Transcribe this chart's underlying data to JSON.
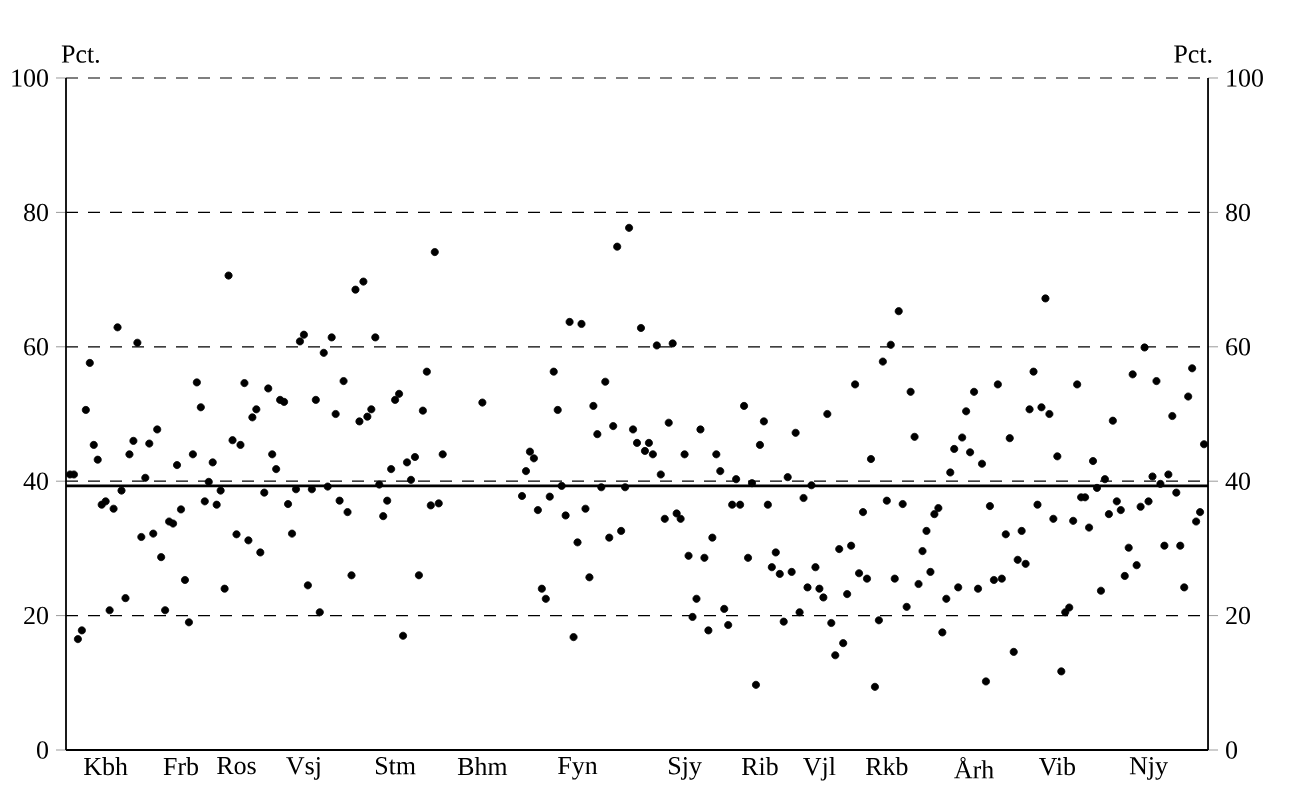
{
  "chart_data": {
    "type": "scatter",
    "ylabel": "Pct.",
    "y2label": "Pct.",
    "categories": [
      null,
      null,
      null,
      null,
      null,
      null,
      null,
      null,
      null,
      "Kbh",
      null,
      null,
      null,
      null,
      null,
      null,
      null,
      null,
      null,
      null,
      null,
      null,
      null,
      null,
      null,
      null,
      null,
      null,
      "Frb",
      null,
      null,
      null,
      null,
      null,
      null,
      null,
      null,
      null,
      null,
      null,
      null,
      null,
      "Ros",
      null,
      null,
      null,
      null,
      null,
      null,
      null,
      null,
      null,
      null,
      null,
      null,
      null,
      null,
      null,
      null,
      "Vsj",
      null,
      null,
      null,
      null,
      null,
      null,
      null,
      null,
      null,
      null,
      null,
      null,
      null,
      null,
      null,
      null,
      null,
      null,
      null,
      null,
      null,
      null,
      "Stm",
      null,
      null,
      null,
      null,
      null,
      null,
      null,
      null,
      null,
      null,
      null,
      null,
      null,
      null,
      null,
      null,
      null,
      null,
      null,
      null,
      null,
      "Bhm",
      null,
      null,
      null,
      null,
      null,
      null,
      null,
      null,
      null,
      null,
      null,
      null,
      null,
      null,
      null,
      null,
      null,
      null,
      null,
      null,
      null,
      null,
      null,
      "Fyn",
      null,
      null,
      null,
      null,
      null,
      null,
      null,
      null,
      null,
      null,
      null,
      null,
      null,
      null,
      null,
      null,
      null,
      null,
      null,
      null,
      null,
      null,
      null,
      null,
      null,
      null,
      "Sjy",
      null,
      null,
      null,
      null,
      null,
      null,
      null,
      null,
      null,
      null,
      null,
      null,
      null,
      null,
      null,
      null,
      null,
      null,
      "Rib",
      null,
      null,
      null,
      null,
      null,
      null,
      null,
      null,
      null,
      null,
      null,
      null,
      null,
      null,
      "Vjl",
      null,
      null,
      null,
      null,
      null,
      null,
      null,
      null,
      null,
      null,
      null,
      null,
      null,
      null,
      null,
      null,
      "Rkb",
      null,
      null,
      null,
      null,
      null,
      null,
      null,
      null,
      null,
      null,
      null,
      null,
      null,
      null,
      null,
      null,
      null,
      null,
      null,
      null,
      null,
      "Årh",
      null,
      null,
      null,
      null,
      null,
      null,
      null,
      null,
      null,
      null,
      null,
      null,
      null,
      null,
      null,
      null,
      null,
      null,
      null,
      null,
      "Vib",
      null,
      null,
      null,
      null,
      null,
      null,
      null,
      null,
      null,
      null,
      null,
      null,
      null,
      null,
      null,
      null,
      null,
      null,
      null,
      null,
      null,
      null,
      "Njy",
      null,
      null,
      null,
      null,
      null,
      null,
      null,
      null,
      null,
      null,
      null,
      null,
      null,
      null
    ],
    "ylim": [
      0,
      100
    ],
    "yticks": [
      0,
      20,
      40,
      60,
      80,
      100
    ],
    "y2lim": [
      0,
      100
    ],
    "y2ticks": [
      0,
      20,
      40,
      60,
      80,
      100
    ],
    "grid": "y",
    "marker": "circle",
    "color": "#000000",
    "ref_lines": [
      {
        "axis": "y",
        "value": 39.3
      }
    ],
    "values": [
      41.0,
      41.0,
      16.5,
      17.8,
      50.6,
      57.6,
      45.4,
      43.2,
      36.5,
      37.0,
      20.8,
      35.9,
      62.9,
      38.6,
      22.6,
      44.0,
      46.0,
      60.6,
      31.7,
      40.5,
      45.6,
      32.2,
      47.7,
      28.7,
      20.8,
      34.0,
      33.7,
      42.4,
      35.8,
      25.3,
      19.0,
      44.0,
      54.7,
      51.0,
      37.0,
      39.9,
      42.8,
      36.5,
      38.6,
      24.0,
      70.6,
      46.1,
      32.1,
      45.4,
      54.6,
      31.2,
      49.5,
      50.7,
      29.4,
      38.3,
      53.8,
      44.0,
      41.8,
      52.1,
      51.8,
      36.6,
      32.2,
      38.8,
      60.8,
      61.8,
      24.5,
      38.8,
      52.1,
      20.5,
      59.1,
      39.2,
      61.4,
      50.0,
      37.1,
      54.9,
      35.4,
      26.0,
      68.5,
      48.9,
      69.7,
      49.6,
      50.7,
      61.4,
      39.5,
      34.8,
      37.1,
      41.8,
      52.1,
      53.0,
      17.0,
      42.8,
      40.2,
      43.6,
      26.0,
      50.5,
      56.3,
      36.4,
      74.1,
      36.7,
      44.0,
      null,
      null,
      null,
      null,
      null,
      null,
      null,
      null,
      null,
      51.7,
      null,
      null,
      null,
      null,
      null,
      null,
      null,
      null,
      null,
      37.8,
      41.5,
      44.4,
      43.4,
      35.7,
      24.0,
      22.5,
      37.7,
      56.3,
      50.6,
      39.3,
      34.9,
      63.7,
      16.8,
      30.9,
      63.4,
      35.9,
      25.7,
      51.2,
      47.0,
      39.1,
      54.8,
      31.6,
      48.2,
      74.9,
      32.6,
      39.1,
      77.7,
      47.7,
      45.7,
      62.8,
      44.5,
      45.7,
      44.0,
      60.2,
      41.0,
      34.4,
      48.7,
      60.5,
      35.2,
      34.4,
      44.0,
      28.9,
      19.8,
      22.5,
      47.7,
      28.6,
      17.8,
      31.6,
      44.0,
      41.5,
      21.0,
      18.6,
      36.5,
      40.3,
      36.5,
      51.2,
      28.6,
      39.7,
      9.7,
      45.4,
      48.9,
      36.5,
      27.2,
      29.4,
      26.2,
      19.1,
      40.6,
      26.5,
      47.2,
      20.5,
      37.5,
      24.2,
      39.4,
      27.2,
      24.0,
      22.7,
      50.0,
      18.9,
      14.1,
      29.9,
      15.9,
      23.2,
      30.4,
      54.4,
      26.3,
      35.4,
      25.5,
      43.3,
      9.4,
      19.3,
      57.8,
      37.1,
      60.3,
      25.5,
      65.3,
      36.6,
      21.3,
      53.3,
      46.6,
      24.7,
      29.6,
      32.6,
      26.5,
      35.1,
      36.0,
      17.5,
      22.5,
      41.3,
      44.8,
      24.2,
      46.5,
      50.4,
      44.3,
      53.3,
      24.0,
      42.6,
      10.2,
      36.3,
      25.3,
      54.4,
      25.5,
      32.1,
      46.4,
      14.6,
      28.3,
      32.6,
      27.7,
      50.7,
      56.3,
      36.5,
      51.0,
      67.2,
      50.0,
      34.4,
      43.7,
      11.7,
      20.5,
      21.2,
      34.1,
      54.4,
      37.6,
      37.6,
      33.1,
      43.0,
      39.0,
      23.7,
      40.3,
      35.1,
      49.0,
      37.0,
      35.7,
      25.9,
      30.1,
      55.9,
      27.5,
      36.2,
      59.9,
      37.0,
      40.7,
      54.9,
      39.6,
      30.4,
      41.0,
      49.7,
      38.3,
      30.4,
      24.2,
      52.6,
      56.8,
      34.0,
      35.4,
      45.5
    ]
  }
}
